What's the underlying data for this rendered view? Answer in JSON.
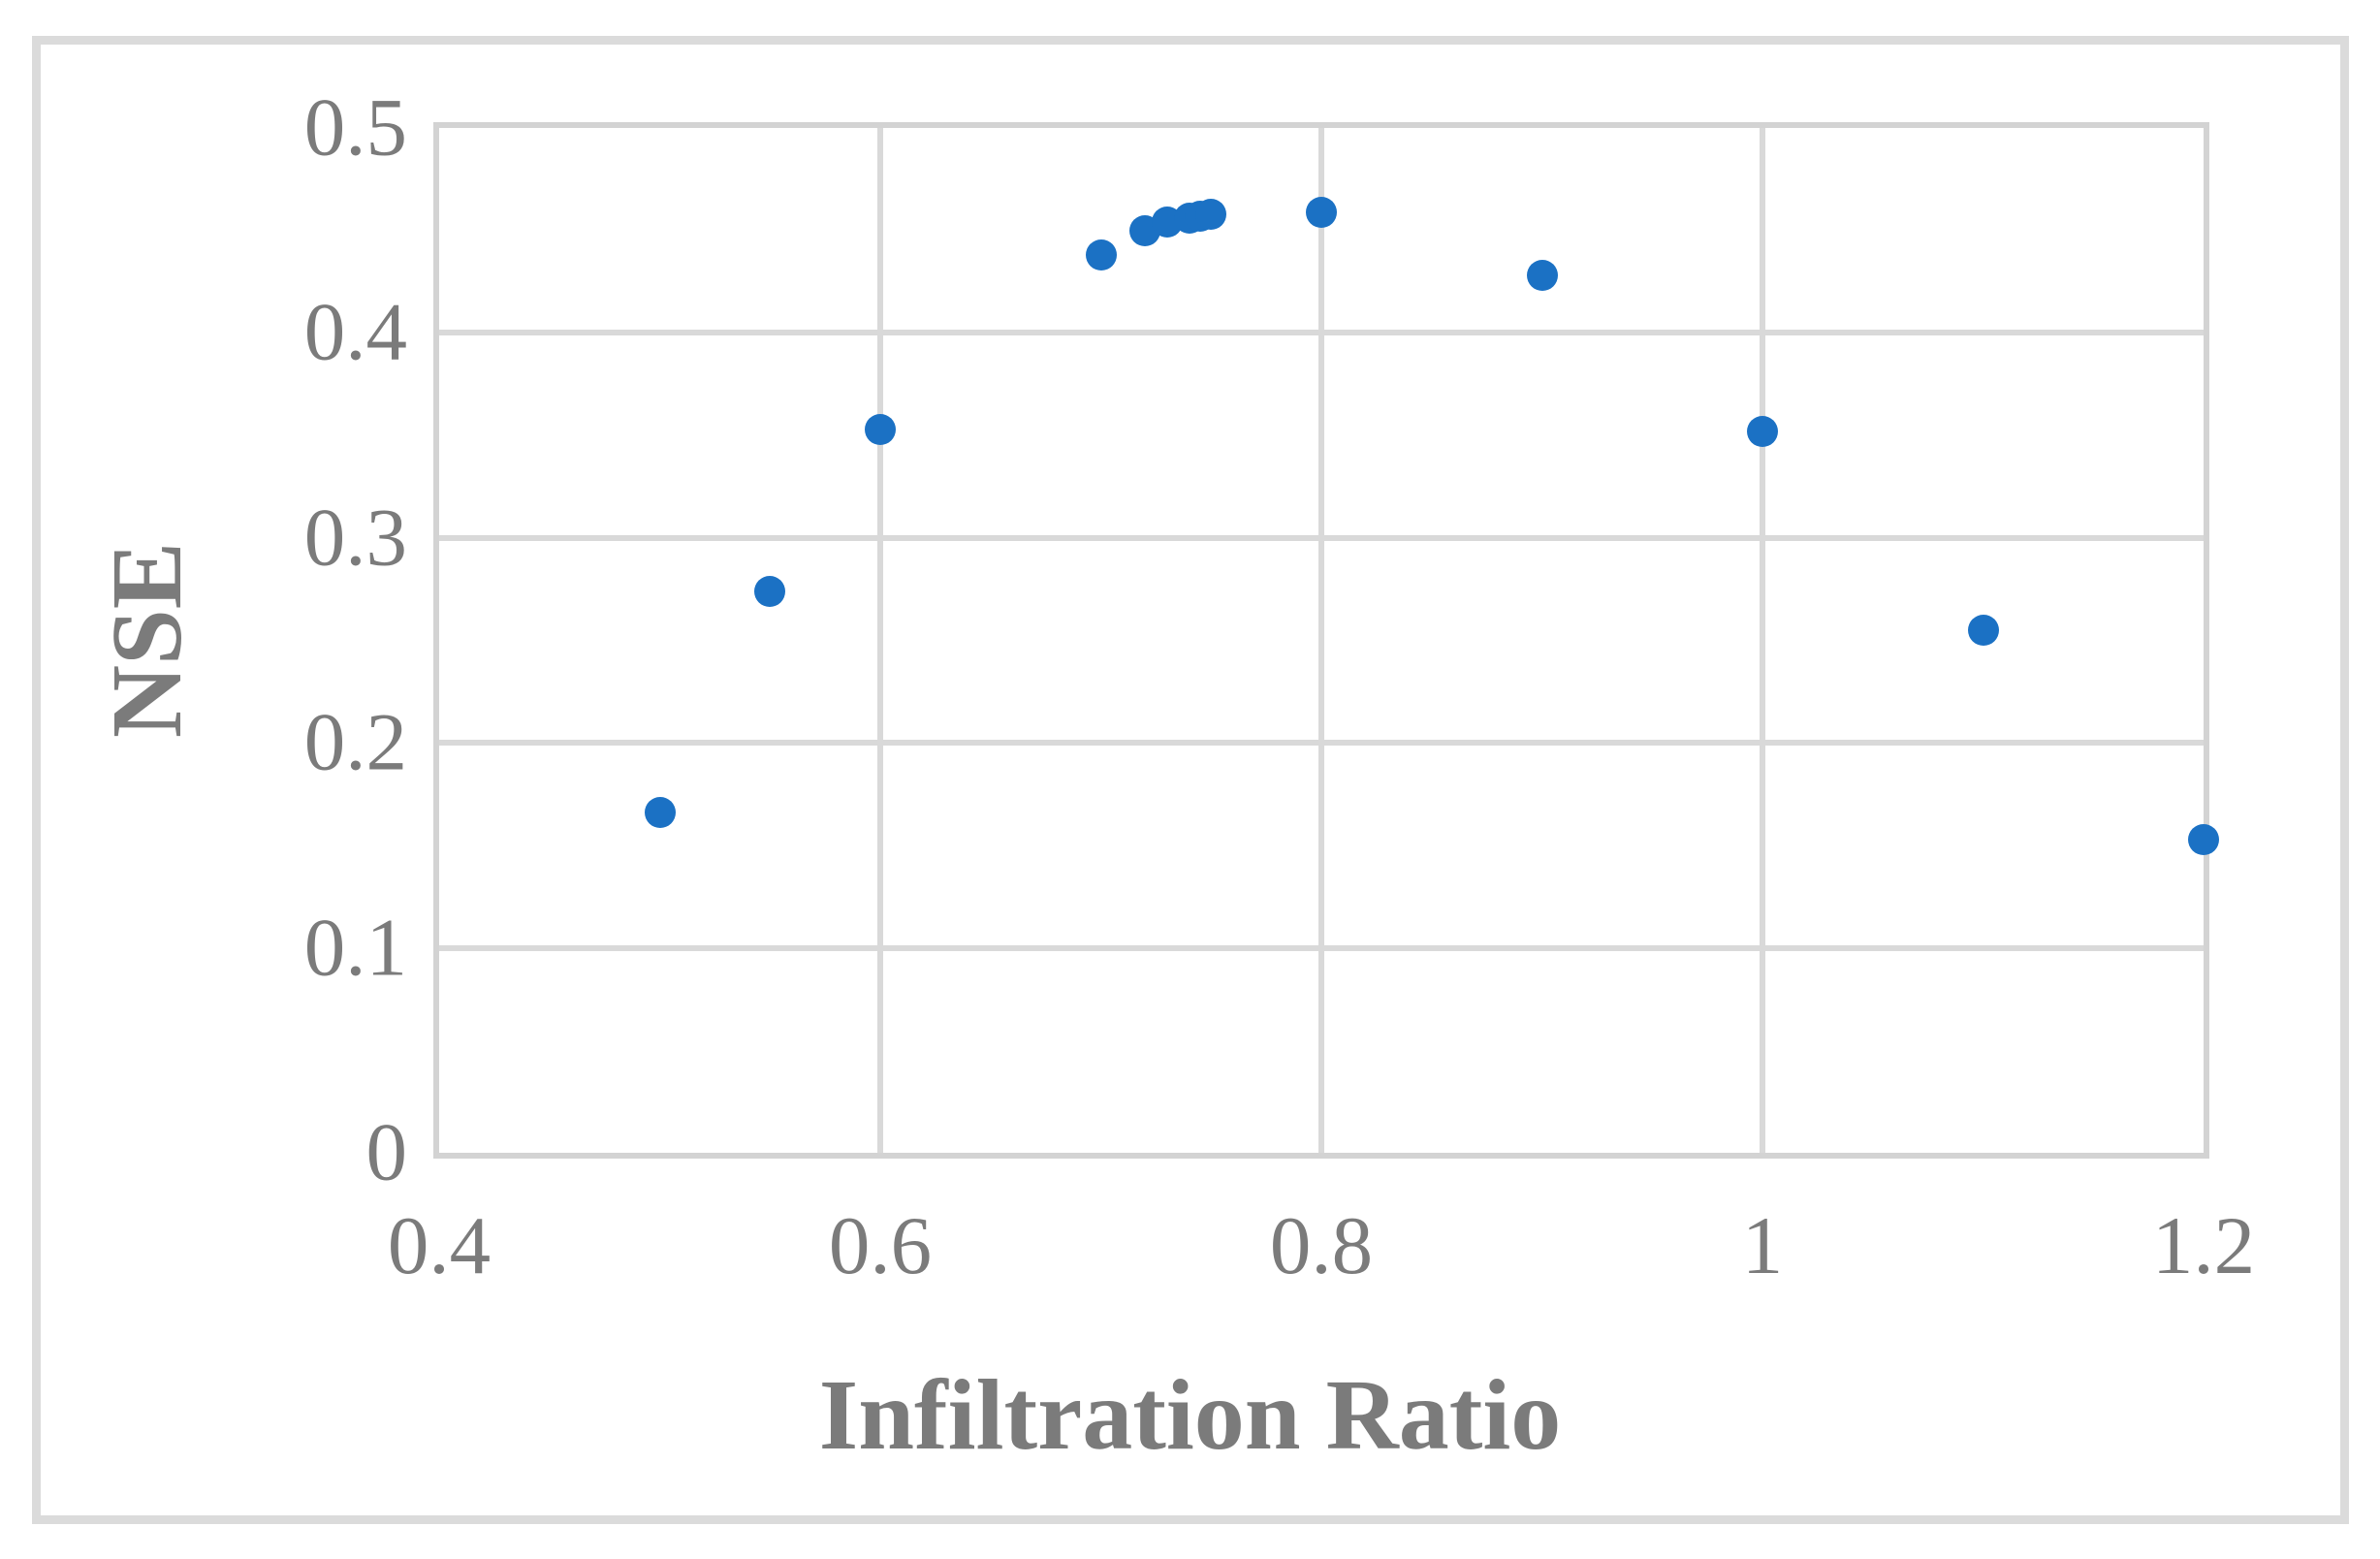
{
  "figure": {
    "background": "#ffffff",
    "frame_border_color": "#dbdbdb",
    "plot_border_color": "#d3d3d3",
    "gridline_color": "#d9d9d9",
    "text_color": "#7b7b7b"
  },
  "chart_data": {
    "type": "scatter",
    "title": "",
    "xlabel": "Infiltration Ratio",
    "ylabel": "NSE",
    "xlim": [
      0.4,
      1.2
    ],
    "ylim": [
      0,
      0.5
    ],
    "x_ticks": [
      "0.4",
      "0.6",
      "0.8",
      "1",
      "1.2"
    ],
    "x_tick_values": [
      0.4,
      0.6,
      0.8,
      1.0,
      1.2
    ],
    "y_ticks": [
      "0",
      "0.1",
      "0.2",
      "0.3",
      "0.4",
      "0.5"
    ],
    "y_tick_values": [
      0,
      0.1,
      0.2,
      0.3,
      0.4,
      0.5
    ],
    "grid": true,
    "legend": "none",
    "marker_color": "#1b71c4",
    "marker_diameter_px": 32,
    "points": [
      {
        "x": 0.5,
        "y": 0.166
      },
      {
        "x": 0.55,
        "y": 0.274
      },
      {
        "x": 0.6,
        "y": 0.353
      },
      {
        "x": 0.7,
        "y": 0.438
      },
      {
        "x": 0.72,
        "y": 0.45
      },
      {
        "x": 0.73,
        "y": 0.454
      },
      {
        "x": 0.74,
        "y": 0.456
      },
      {
        "x": 0.745,
        "y": 0.457
      },
      {
        "x": 0.75,
        "y": 0.458
      },
      {
        "x": 0.8,
        "y": 0.459
      },
      {
        "x": 0.9,
        "y": 0.428
      },
      {
        "x": 1.0,
        "y": 0.352
      },
      {
        "x": 1.1,
        "y": 0.255
      },
      {
        "x": 1.2,
        "y": 0.153
      }
    ]
  }
}
